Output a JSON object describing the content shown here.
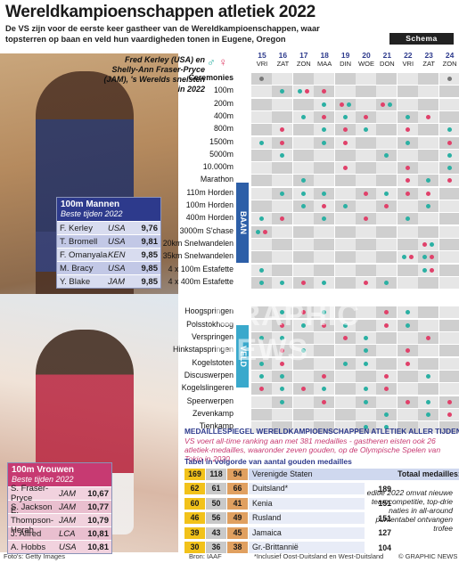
{
  "title": "Wereldkampioenschappen atletiek 2022",
  "subtitle": "De VS zijn voor de eerste keer gastheer van de Wereldkampioenschappen, waar topsterren op baan en veld hun vaardigheden tonen in Eugene, Oregon",
  "photo_caption": "Fred Kerley (USA) en Shelly-Ann Fraser-Pryce (JAM), 's Werelds snelsten in 2022",
  "schema_label": "Schema",
  "gender_icons": {
    "male": "male-icon",
    "female": "female-icon"
  },
  "days": [
    {
      "d": "15",
      "w": "VRI"
    },
    {
      "d": "16",
      "w": "ZAT"
    },
    {
      "d": "17",
      "w": "ZON"
    },
    {
      "d": "18",
      "w": "MAA"
    },
    {
      "d": "19",
      "w": "DIN"
    },
    {
      "d": "20",
      "w": "WOE"
    },
    {
      "d": "21",
      "w": "DON"
    },
    {
      "d": "22",
      "w": "VRI"
    },
    {
      "d": "23",
      "w": "ZAT"
    },
    {
      "d": "24",
      "w": "ZON"
    }
  ],
  "section_labels": {
    "baan": "BAAN",
    "veld": "VELD"
  },
  "ceremonies_label": "Ceremonies",
  "track_events": [
    "100m",
    "200m",
    "400m",
    "800m",
    "1500m",
    "5000m",
    "10.000m",
    "Marathon",
    "110m Horden",
    "100m Horden",
    "400m Horden",
    "3000m S'chase",
    "20km Snelwandelen",
    "35km Snelwandelen",
    "4 x 100m Estafette",
    "4 x 400m Estafette"
  ],
  "field_events": [
    "Hoogspringen",
    "Polsstokhoog",
    "Verspringen",
    "Hinkstapspringen",
    "Kogelstoten",
    "Discuswerpen",
    "Kogelslingeren",
    "Speerwerpen",
    "Zevenkamp",
    "Tienkamp"
  ],
  "colors": {
    "male": "#2bb0a3",
    "female": "#e0416a",
    "navy": "#2d3a8c",
    "pink": "#c73a72"
  },
  "men_table": {
    "title": "100m Mannen",
    "subtitle": "Beste tijden 2022",
    "rows": [
      {
        "name": "F. Kerley",
        "country": "USA",
        "time": "9,76"
      },
      {
        "name": "T. Bromell",
        "country": "USA",
        "time": "9,81"
      },
      {
        "name": "F. Omanyala",
        "country": "KEN",
        "time": "9,85"
      },
      {
        "name": "M. Bracy",
        "country": "USA",
        "time": "9,85"
      },
      {
        "name": "Y. Blake",
        "country": "JAM",
        "time": "9,85"
      }
    ]
  },
  "women_table": {
    "title": "100m Vrouwen",
    "subtitle": "Beste tijden 2022",
    "rows": [
      {
        "name": "S. Fraser-Pryce",
        "country": "JAM",
        "time": "10,67"
      },
      {
        "name": "S. Jackson",
        "country": "JAM",
        "time": "10,77"
      },
      {
        "name": "E. Thompson-Herah",
        "country": "JAM",
        "time": "10,79"
      },
      {
        "name": "J. Alfred",
        "country": "LCA",
        "time": "10,81"
      },
      {
        "name": "A. Hobbs",
        "country": "USA",
        "time": "10,81"
      }
    ]
  },
  "medals": {
    "title": "Medaillespiegel wereldkampioenschappen atletiek aller tijden",
    "intro": "VS voert all-time ranking aan met 381 medailles - gastheren eisten ook 26 atletiek-medailles, waaronder zeven gouden, op de Olympische Spelen van Tokio in 2020",
    "subheading": "Tabel in volgorde van aantal gouden medailles",
    "total_label": "Totaal medailles: 381",
    "rows": [
      {
        "g": "169",
        "s": "118",
        "b": "94",
        "country": "Verenigde Staten",
        "total": ""
      },
      {
        "g": "62",
        "s": "61",
        "b": "66",
        "country": "Duitsland*",
        "total": "189"
      },
      {
        "g": "60",
        "s": "50",
        "b": "41",
        "country": "Kenia",
        "total": "151"
      },
      {
        "g": "46",
        "s": "56",
        "b": "49",
        "country": "Rusland",
        "total": "151"
      },
      {
        "g": "39",
        "s": "43",
        "b": "45",
        "country": "Jamaica",
        "total": "127"
      },
      {
        "g": "30",
        "s": "36",
        "b": "38",
        "country": "Gr.-Brittannië",
        "total": "104"
      }
    ],
    "note": "editie 2022 omvat nieuwe teamcompetitie, top-drie naties in all-around puntentabel ontvangen trofee"
  },
  "watermark": "GRAPHIC NEWS",
  "credits": {
    "photos": "Foto's: Getty Images",
    "source": "Bron: IAAF",
    "footnote": "*Inclusief Oost-Duitsland en West-Duitsland",
    "brand": "© GRAPHIC NEWS"
  }
}
